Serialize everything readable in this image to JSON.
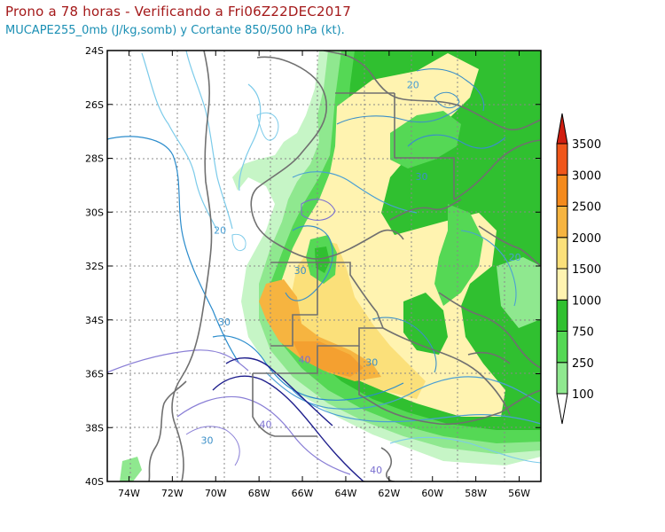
{
  "header": {
    "title": "Prono a 78 horas - Verificando a Fri06Z22DEC2017",
    "subtitle": "MUCAPE255_0mb (J/kg,somb) y Cortante 850/500 hPa (kt)."
  },
  "map": {
    "lon_range": [
      -75,
      -55
    ],
    "lat_range": [
      -40,
      -24
    ],
    "lon_ticks": [
      "74W",
      "72W",
      "70W",
      "68W",
      "66W",
      "64W",
      "62W",
      "60W",
      "58W",
      "56W"
    ],
    "lat_ticks": [
      "24S",
      "26S",
      "28S",
      "30S",
      "32S",
      "34S",
      "36S",
      "38S",
      "40S"
    ],
    "shear_contour_labels": [
      {
        "text": "20",
        "lon": -60.9,
        "lat": -25.4,
        "color": "#4a9fd4"
      },
      {
        "text": "30",
        "lon": -60.5,
        "lat": -28.8,
        "color": "#3b8fc8"
      },
      {
        "text": "20",
        "lon": -69.8,
        "lat": -30.8,
        "color": "#4a9fd4"
      },
      {
        "text": "30",
        "lon": -66.1,
        "lat": -32.3,
        "color": "#3b8fc8"
      },
      {
        "text": "30",
        "lon": -69.6,
        "lat": -34.2,
        "color": "#3b8fc8"
      },
      {
        "text": "20",
        "lon": -56.2,
        "lat": -31.8,
        "color": "#4a9fd4"
      },
      {
        "text": "40",
        "lon": -65.9,
        "lat": -35.6,
        "color": "#7a6fd0"
      },
      {
        "text": "30",
        "lon": -62.8,
        "lat": -35.7,
        "color": "#3b8fc8"
      },
      {
        "text": "40",
        "lon": -67.7,
        "lat": -38.0,
        "color": "#7a6fd0"
      },
      {
        "text": "30",
        "lon": -70.4,
        "lat": -38.6,
        "color": "#3b8fc8"
      },
      {
        "text": "40",
        "lon": -62.6,
        "lat": -39.7,
        "color": "#7a6fd0"
      }
    ]
  },
  "colorbar": {
    "labels": [
      "100",
      "250",
      "750",
      "1000",
      "1500",
      "2000",
      "2500",
      "3000",
      "3500"
    ],
    "colors": [
      "#c6f5c6",
      "#8fe88f",
      "#55d855",
      "#30c030",
      "#fff3b0",
      "#fbe07a",
      "#f6b440",
      "#f48a1c",
      "#f0561a",
      "#d01e10"
    ]
  }
}
